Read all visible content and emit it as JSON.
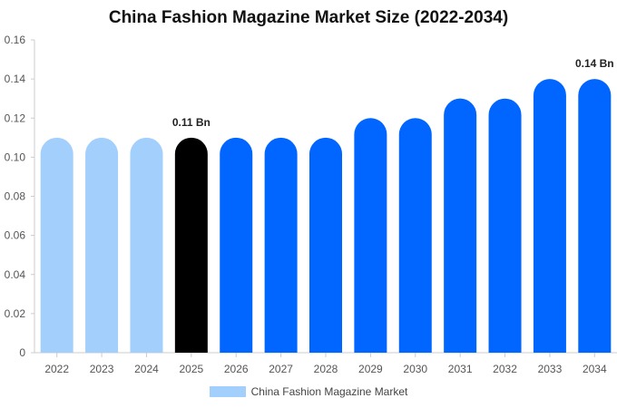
{
  "chart_data": {
    "type": "bar",
    "title": "China Fashion Magazine Market Size (2022-2034)",
    "xlabel": "",
    "ylabel": "",
    "categories": [
      "2022",
      "2023",
      "2024",
      "2025",
      "2026",
      "2027",
      "2028",
      "2029",
      "2030",
      "2031",
      "2032",
      "2033",
      "2034"
    ],
    "series": [
      {
        "name": "China Fashion Magazine Market",
        "values": [
          0.11,
          0.11,
          0.11,
          0.11,
          0.11,
          0.11,
          0.11,
          0.12,
          0.12,
          0.13,
          0.13,
          0.14,
          0.14
        ]
      }
    ],
    "ylim": [
      0,
      0.16
    ],
    "yticks": [
      0,
      0.02,
      0.04,
      0.06,
      0.08,
      0.1,
      0.12,
      0.14,
      0.16
    ],
    "ytick_labels": [
      "0",
      "0.02",
      "0.04",
      "0.06",
      "0.08",
      "0.10",
      "0.12",
      "0.14",
      "0.16"
    ],
    "data_labels": [
      {
        "category": "2025",
        "text": "0.11 Bn"
      },
      {
        "category": "2034",
        "text": "0.14 Bn"
      }
    ],
    "grid": false,
    "legend": "bottom-center",
    "colors": {
      "historic": "#a3cffd",
      "current": "#000000",
      "forecast": "#0066ff",
      "legend_swatch": "#a3cffd"
    },
    "color_groups": [
      "historic",
      "historic",
      "historic",
      "current",
      "forecast",
      "forecast",
      "forecast",
      "forecast",
      "forecast",
      "forecast",
      "forecast",
      "forecast",
      "forecast"
    ]
  }
}
